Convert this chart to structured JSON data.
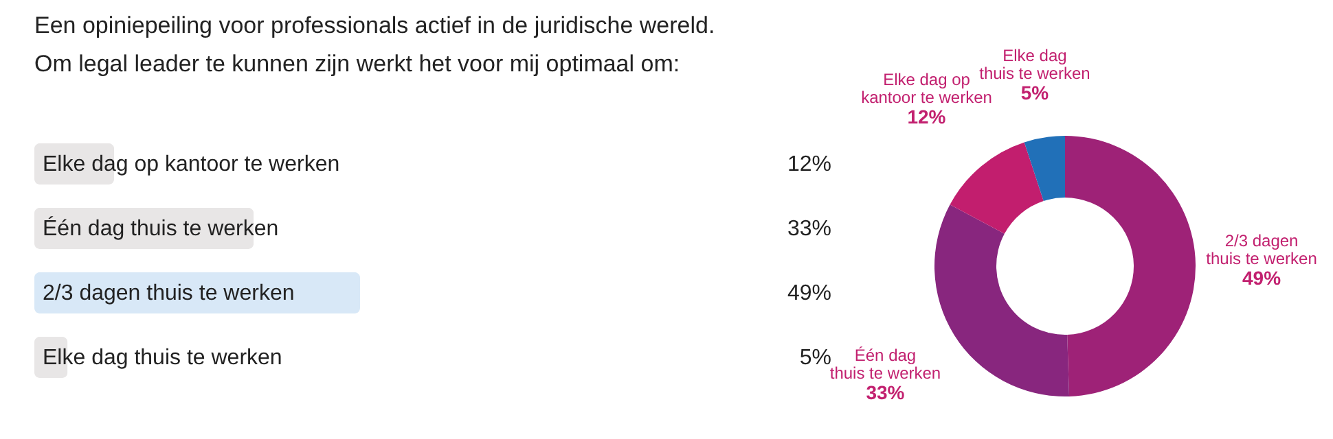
{
  "chart_data": [
    {
      "type": "bar",
      "orientation": "horizontal",
      "title": "Een opiniepeiling voor professionals actief in de juridische wereld.\nOm legal leader te kunnen zijn werkt het voor mij optimaal om:",
      "categories": [
        "Elke dag op kantoor te werken",
        "Één dag thuis te werken",
        "2/3 dagen thuis te werken",
        "Elke dag thuis te werken"
      ],
      "values": [
        12,
        33,
        49,
        5
      ],
      "value_labels": [
        "12%",
        "33%",
        "49%",
        "5%"
      ],
      "colors": [
        "#e8e6e6",
        "#e8e6e6",
        "#d8e8f7",
        "#e8e6e6"
      ]
    },
    {
      "type": "donut",
      "categories": [
        "2/3 dagen thuis te werken",
        "Één dag thuis te werken",
        "Elke dag op kantoor te werken",
        "Elke dag thuis te werken"
      ],
      "values": [
        49,
        33,
        12,
        5
      ],
      "value_labels": [
        "49%",
        "33%",
        "12%",
        "5%"
      ],
      "colors": [
        "#9e2277",
        "#88267e",
        "#c21e6e",
        "#2170b8"
      ]
    }
  ]
}
